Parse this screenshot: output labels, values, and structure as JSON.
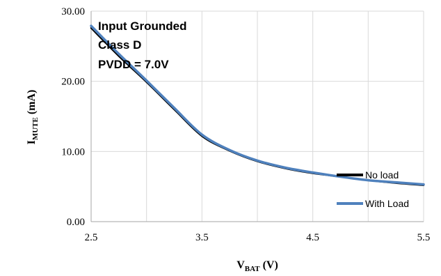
{
  "chart_data": {
    "type": "line",
    "title": "",
    "xlabel": {
      "main": "V",
      "sub": "BAT",
      "unit": " (V)"
    },
    "ylabel": {
      "main": "I",
      "sub": "MUTE",
      "unit": " (mA)"
    },
    "xlim": [
      2.5,
      5.5
    ],
    "ylim": [
      0,
      30
    ],
    "x_ticks": [
      "2.5",
      "3.5",
      "4.5",
      "5.5"
    ],
    "x_tick_values": [
      2.5,
      3.5,
      4.5,
      5.5
    ],
    "x_grid_values": [
      2.5,
      3.0,
      3.5,
      4.0,
      4.5,
      5.0,
      5.5
    ],
    "y_ticks": [
      "0.00",
      "10.00",
      "20.00",
      "30.00"
    ],
    "y_tick_values": [
      0,
      10,
      20,
      30
    ],
    "grid": true,
    "legend_position": "bottom-right",
    "annotations": [
      "Input Grounded",
      "Class D",
      "PVDD = 7.0V"
    ],
    "series": [
      {
        "name": "No load",
        "color": "#000000",
        "x": [
          2.5,
          2.75,
          3.0,
          3.25,
          3.5,
          3.75,
          4.0,
          4.25,
          4.5,
          4.75,
          5.0,
          5.25,
          5.5
        ],
        "y": [
          27.6,
          23.6,
          19.9,
          16.0,
          12.2,
          10.1,
          8.6,
          7.6,
          6.9,
          6.4,
          5.9,
          5.5,
          5.2
        ]
      },
      {
        "name": "With Load",
        "color": "#4f81bd",
        "x": [
          2.5,
          2.75,
          3.0,
          3.25,
          3.5,
          3.75,
          4.0,
          4.25,
          4.5,
          4.75,
          5.0,
          5.25,
          5.5
        ],
        "y": [
          27.9,
          23.9,
          20.1,
          16.2,
          12.4,
          10.2,
          8.7,
          7.7,
          7.0,
          6.4,
          5.9,
          5.6,
          5.3
        ]
      }
    ]
  }
}
